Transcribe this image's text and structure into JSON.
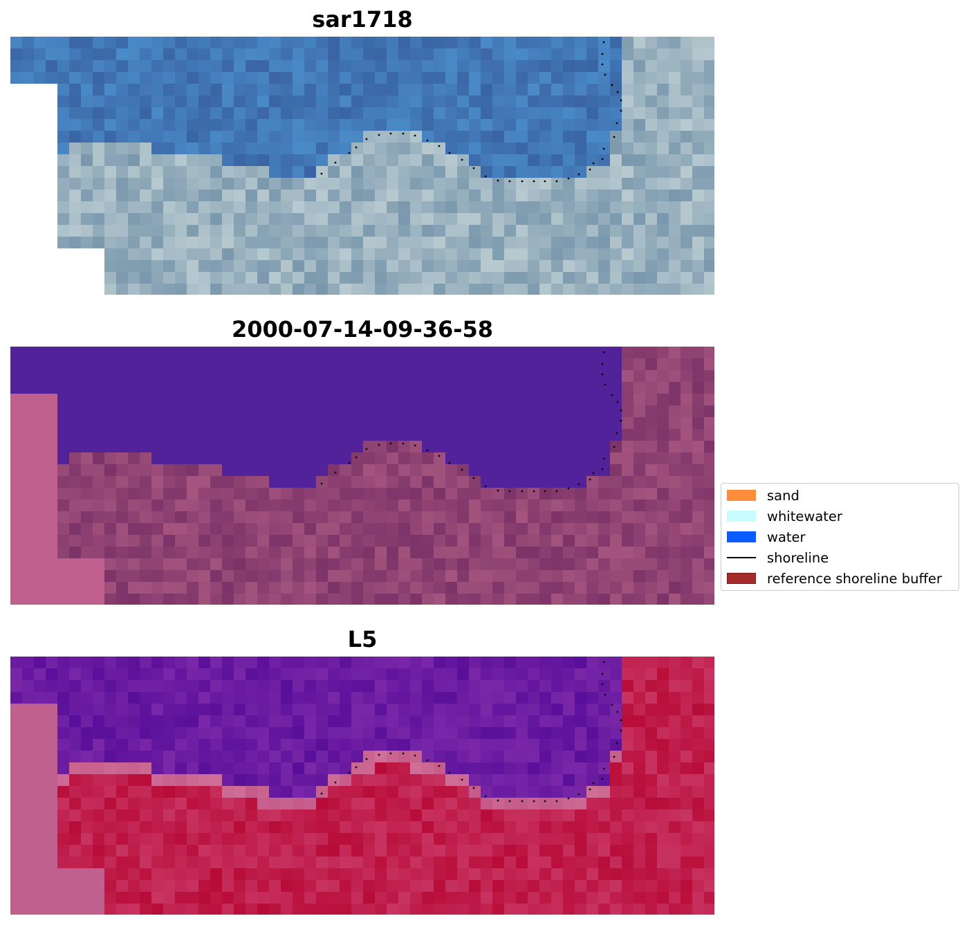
{
  "panels": [
    {
      "title": "sar1718",
      "kind": "rgb"
    },
    {
      "title": "2000-07-14-09-36-58",
      "kind": "classified"
    },
    {
      "title": "L5",
      "kind": "mndwi"
    }
  ],
  "legend": {
    "items": [
      {
        "label": "sand",
        "color": "#ff8c3a",
        "type": "patch"
      },
      {
        "label": "whitewater",
        "color": "#c8fdff",
        "type": "patch"
      },
      {
        "label": "water",
        "color": "#0a5cff",
        "type": "patch"
      },
      {
        "label": "shoreline",
        "color": "#000000",
        "type": "line"
      },
      {
        "label": "reference shoreline buffer",
        "color": "#a52a2a",
        "type": "patch"
      }
    ]
  },
  "colors": {
    "nodata": "#ffffff",
    "buffer_overlay": "#c0608f",
    "water_class": "#52229a",
    "land_tint": "#8a3c72",
    "water_index": "#6a16a0",
    "land_index": "#c0143c"
  }
}
